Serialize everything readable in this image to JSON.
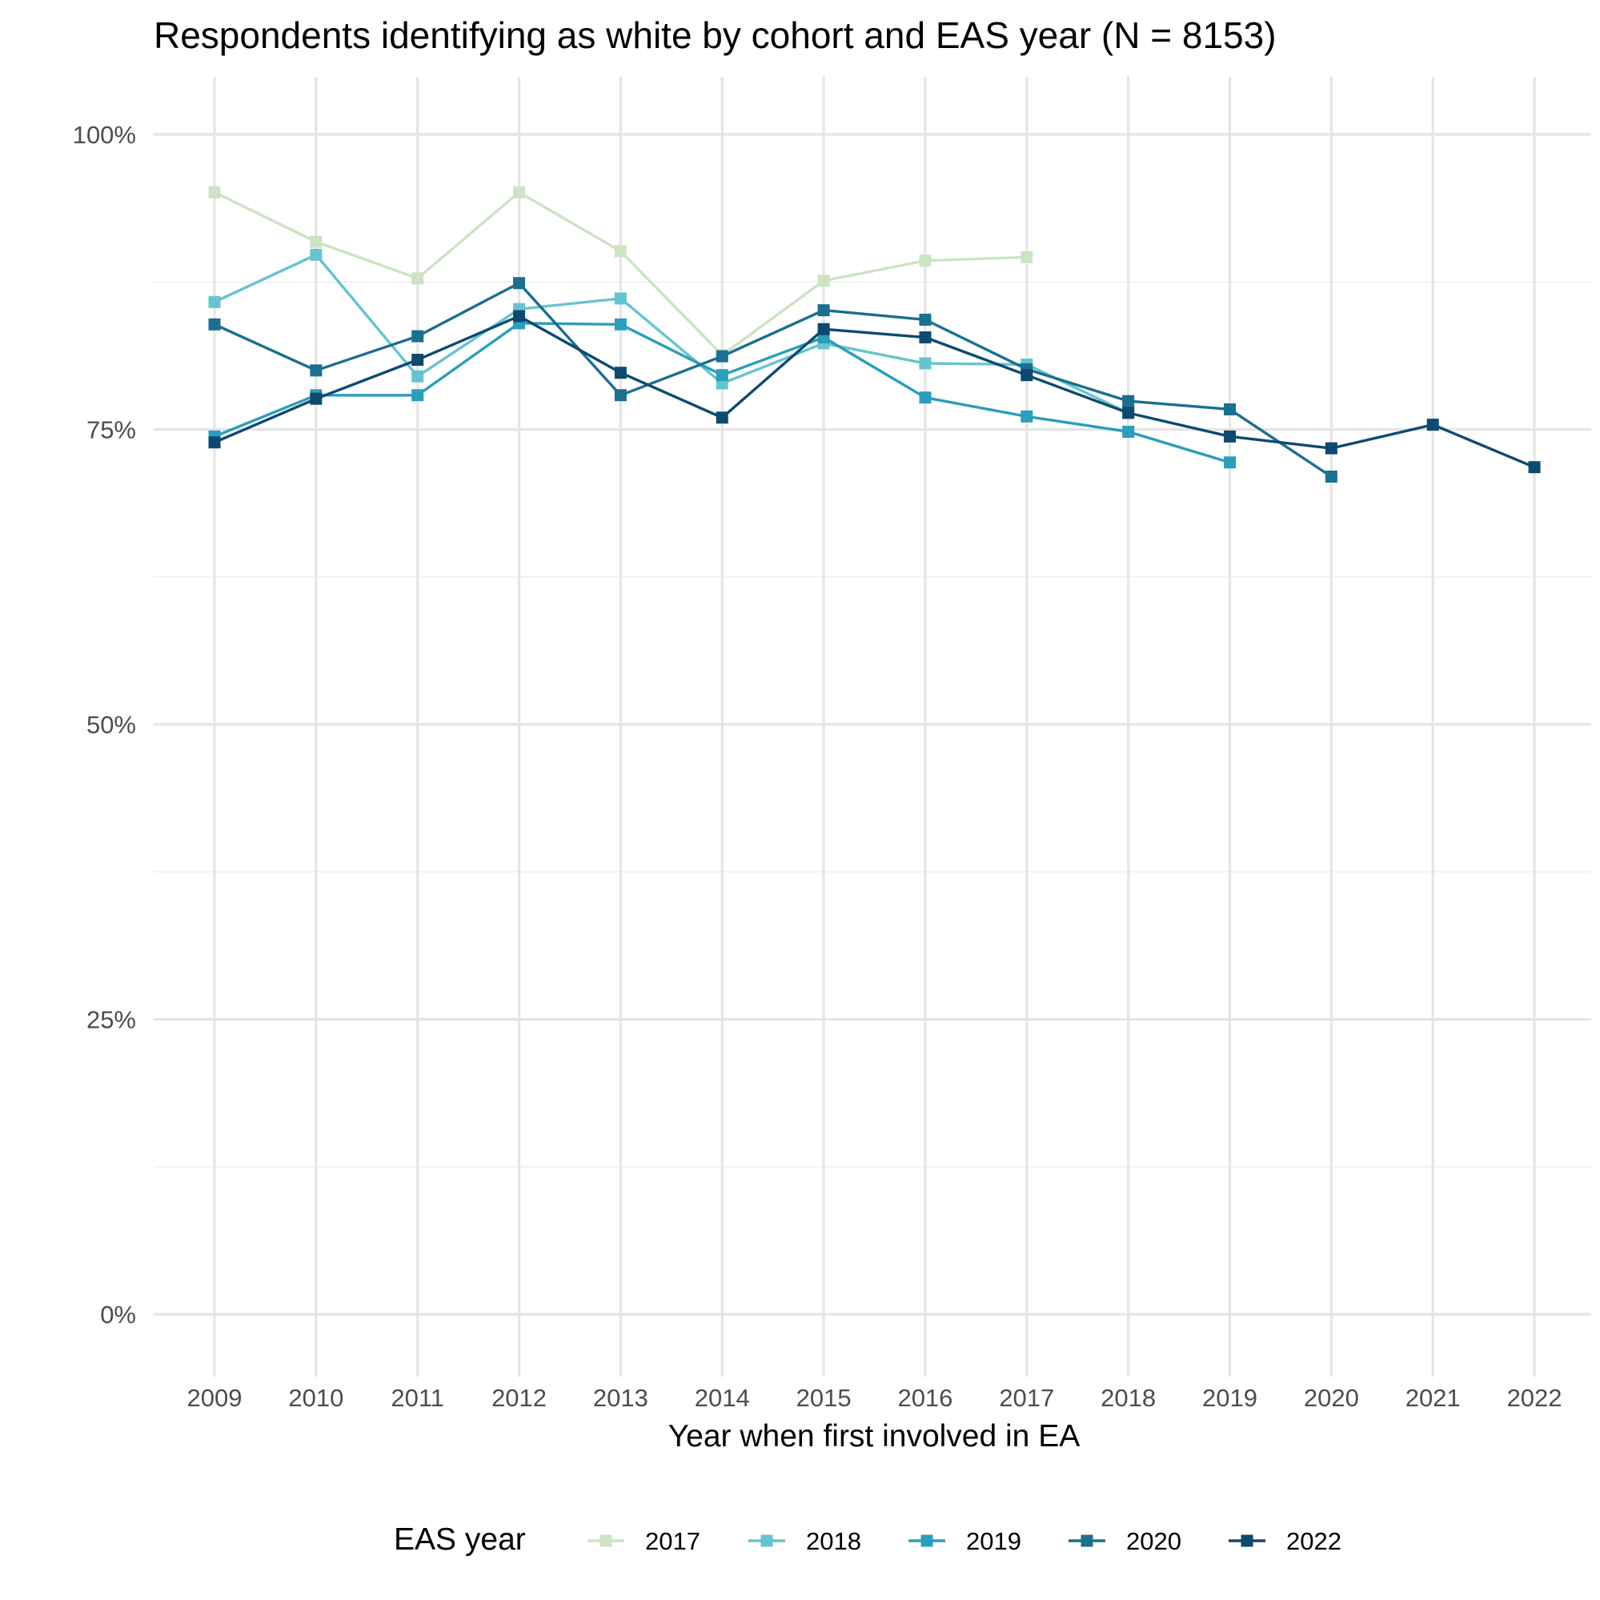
{
  "chart_data": {
    "type": "line",
    "title": "Respondents identifying as white by cohort and EAS year (N = 8153)",
    "xlabel": "Year when first involved in EA",
    "ylabel": "",
    "categories": [
      "2009",
      "2010",
      "2011",
      "2012",
      "2013",
      "2014",
      "2015",
      "2016",
      "2017",
      "2018",
      "2019",
      "2020",
      "2021",
      "2022"
    ],
    "y_ticks": [
      "0%",
      "25%",
      "50%",
      "75%",
      "100%"
    ],
    "ylim": [
      0,
      1
    ],
    "grid": true,
    "legend": {
      "title": "EAS year",
      "position": "bottom"
    },
    "marker": "square",
    "series": [
      {
        "name": "2017",
        "color": "#cce3c4",
        "values": [
          0.951,
          0.909,
          0.878,
          0.951,
          0.901,
          0.813,
          0.876,
          0.893,
          0.896,
          null,
          null,
          null,
          null,
          null
        ]
      },
      {
        "name": "2018",
        "color": "#66c4d0",
        "values": [
          0.858,
          0.898,
          0.795,
          0.852,
          0.861,
          0.789,
          0.823,
          0.806,
          0.805,
          0.764,
          null,
          null,
          null,
          null
        ]
      },
      {
        "name": "2019",
        "color": "#2b9ebb",
        "values": [
          0.744,
          0.779,
          0.779,
          0.84,
          0.839,
          0.796,
          0.828,
          0.777,
          0.761,
          0.748,
          0.722,
          null,
          null,
          null
        ]
      },
      {
        "name": "2020",
        "color": "#1b6f8f",
        "values": [
          0.839,
          0.8,
          0.829,
          0.874,
          0.779,
          0.812,
          0.851,
          0.843,
          0.801,
          0.774,
          0.767,
          0.71,
          null,
          null
        ]
      },
      {
        "name": "2022",
        "color": "#0e4a70",
        "values": [
          0.739,
          0.776,
          0.809,
          0.846,
          0.798,
          0.76,
          0.835,
          0.828,
          0.796,
          0.764,
          0.744,
          0.734,
          0.754,
          0.718
        ]
      }
    ]
  }
}
